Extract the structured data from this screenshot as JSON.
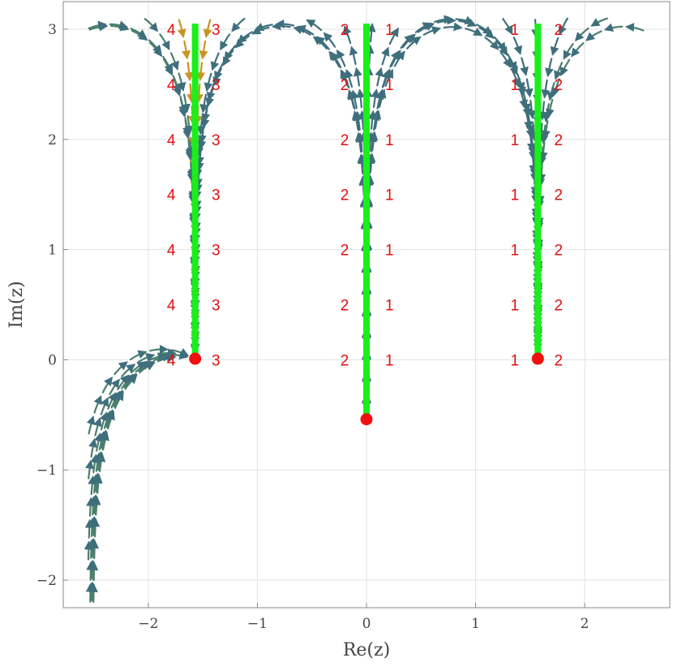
{
  "chart_data": {
    "type": "streamplot",
    "xlabel": "Re(z)",
    "ylabel": "Im(z)",
    "xlim": [
      -2.78,
      2.78
    ],
    "ylim": [
      -2.25,
      3.25
    ],
    "x_ticks": [
      {
        "value": -2,
        "label": "−2"
      },
      {
        "value": -1,
        "label": "−1"
      },
      {
        "value": 0,
        "label": "0"
      },
      {
        "value": 1,
        "label": "1"
      },
      {
        "value": 2,
        "label": "2"
      }
    ],
    "y_ticks": [
      {
        "value": -2,
        "label": "−2"
      },
      {
        "value": -1,
        "label": "−1"
      },
      {
        "value": 0,
        "label": "0"
      },
      {
        "value": 1,
        "label": "1"
      },
      {
        "value": 2,
        "label": "2"
      },
      {
        "value": 3,
        "label": "3"
      }
    ],
    "grid": true,
    "branch_cuts": [
      {
        "x": -1.5708,
        "y_from": 0.02,
        "y_to": 3.05
      },
      {
        "x": 0.0,
        "y_from": -0.52,
        "y_to": 3.05
      },
      {
        "x": 1.5708,
        "y_from": 0.02,
        "y_to": 3.05
      }
    ],
    "branch_points": [
      {
        "x": -1.5708,
        "y": 0.01
      },
      {
        "x": 0.0,
        "y": -0.54
      },
      {
        "x": 1.5708,
        "y": 0.01
      }
    ],
    "region_labels": {
      "rows_y": [
        3.0,
        2.5,
        2.0,
        1.5,
        1.0,
        0.5,
        0.0
      ],
      "columns": [
        {
          "x": -1.79,
          "text": "4"
        },
        {
          "x": -1.38,
          "text": "3"
        },
        {
          "x": -0.2,
          "text": "2"
        },
        {
          "x": 0.21,
          "text": "1"
        },
        {
          "x": 1.36,
          "text": "1"
        },
        {
          "x": 1.76,
          "text": "2"
        }
      ]
    },
    "colors": {
      "stream": "#3f6f7c",
      "stream_alt": "#4a7f6c",
      "stream_warm": "#c89520",
      "branch_cut": "#19f019",
      "branch_point": "#f01010",
      "label": "#e01010",
      "grid": "#e2e2e2",
      "frame": "#8a8a8a"
    }
  }
}
